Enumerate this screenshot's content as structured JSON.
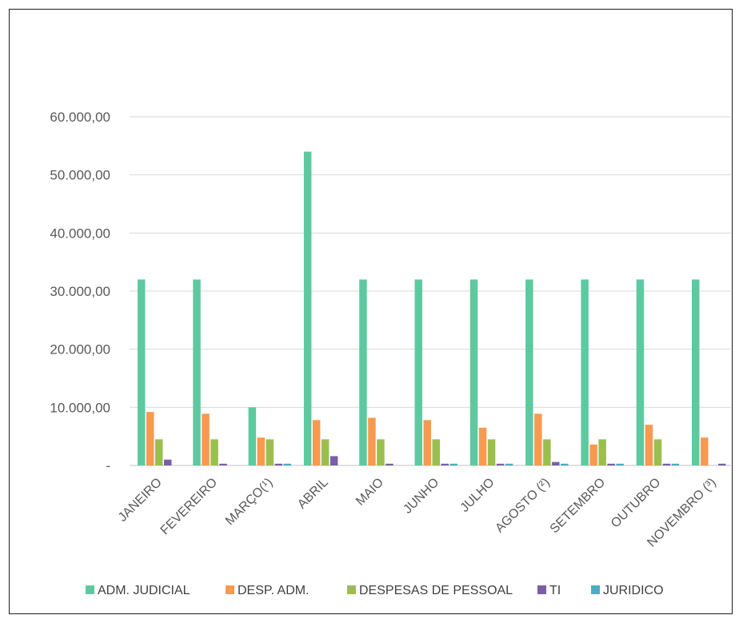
{
  "chart_data": {
    "type": "bar",
    "title": "",
    "xlabel": "",
    "ylabel": "",
    "categories": [
      "JANEIRO",
      "FEVEREIRO",
      "MARÇO(¹)",
      "ABRIL",
      "MAIO",
      "JUNHO",
      "JULHO",
      "AGOSTO (²)",
      "SETEMBRO",
      "OUTUBRO",
      "NOVEMBRO (³)"
    ],
    "ylim": [
      0,
      60000
    ],
    "yticks": [
      0,
      10000,
      20000,
      30000,
      40000,
      50000,
      60000
    ],
    "ytick_labels": [
      "-",
      "10.000,00",
      "20.000,00",
      "30.000,00",
      "40.000,00",
      "50.000,00",
      "60.000,00"
    ],
    "grid": true,
    "legend_position": "bottom",
    "series": [
      {
        "name": "ADM. JUDICIAL",
        "color": "#5ec9a0",
        "values": [
          32000,
          32000,
          10000,
          54000,
          32000,
          32000,
          32000,
          32000,
          32000,
          32000,
          32000
        ]
      },
      {
        "name": "DESP. ADM.",
        "color": "#f79a4f",
        "values": [
          9200,
          8900,
          4800,
          7800,
          8200,
          7800,
          6500,
          8900,
          3600,
          7000,
          4800
        ]
      },
      {
        "name": "DESPESAS DE PESSOAL",
        "color": "#9bbf4e",
        "values": [
          4500,
          4500,
          4500,
          4500,
          4500,
          4500,
          4500,
          4500,
          4500,
          4500,
          0
        ]
      },
      {
        "name": "TI",
        "color": "#7b5ea7",
        "values": [
          1000,
          300,
          300,
          1600,
          300,
          300,
          300,
          600,
          300,
          300,
          300
        ]
      },
      {
        "name": "JURIDICO",
        "color": "#4bacc6",
        "values": [
          0,
          0,
          300,
          0,
          0,
          300,
          300,
          300,
          300,
          300,
          0
        ]
      }
    ]
  }
}
